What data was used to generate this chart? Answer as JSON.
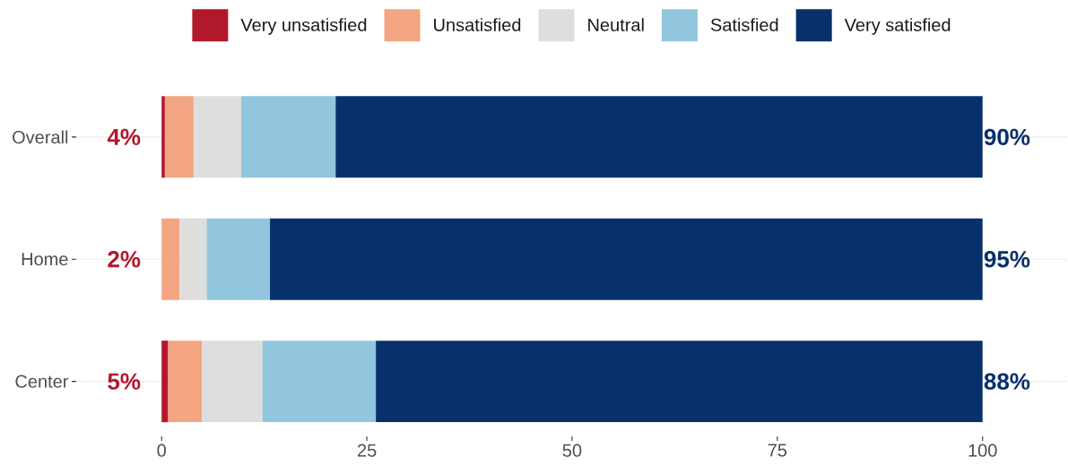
{
  "chart_data": {
    "type": "bar",
    "orientation": "horizontal",
    "stacked": true,
    "categories": [
      "Overall",
      "Home",
      "Center"
    ],
    "series": [
      {
        "name": "Very unsatisfied",
        "color": "#b2182b",
        "values": [
          0.4,
          0,
          0.8
        ]
      },
      {
        "name": "Unsatisfied",
        "color": "#f4a582",
        "values": [
          3.5,
          2.2,
          4.1
        ]
      },
      {
        "name": "Neutral",
        "color": "#dedede",
        "values": [
          5.8,
          3.3,
          7.4
        ]
      },
      {
        "name": "Satisfied",
        "color": "#92c5de",
        "values": [
          11.5,
          7.7,
          13.8
        ]
      },
      {
        "name": "Very satisfied",
        "color": "#08306b",
        "values": [
          78.8,
          86.8,
          73.9
        ]
      }
    ],
    "xlim": [
      -10.4,
      110.3
    ],
    "xticks": [
      0,
      25,
      50,
      75,
      100
    ],
    "grid": "y",
    "legend": "top",
    "annotations": [
      "4%",
      "2%",
      "5%",
      "90%",
      "95%",
      "88%"
    ]
  }
}
